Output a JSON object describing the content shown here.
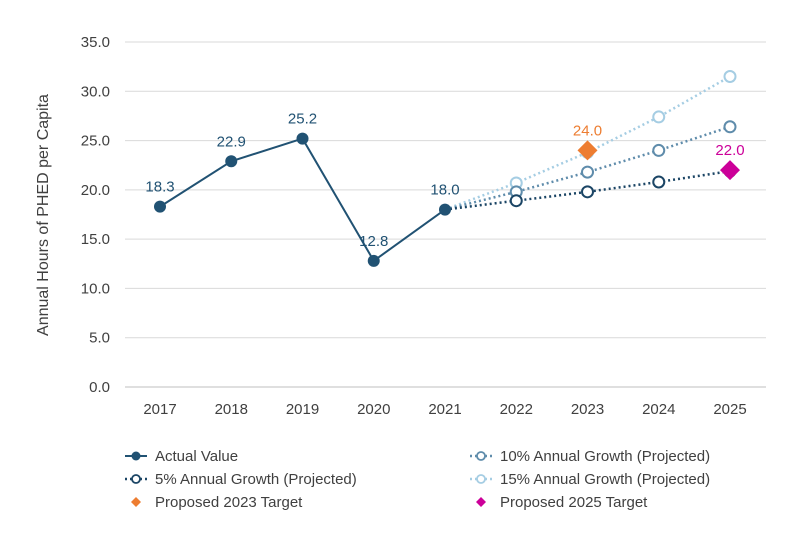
{
  "chart_data": {
    "type": "line",
    "title": "",
    "xlabel": "",
    "ylabel": "Annual Hours of PHED per Capita",
    "ylim": [
      0,
      35
    ],
    "yticks": [
      "0.0",
      "5.0",
      "10.0",
      "15.0",
      "20.0",
      "25.0",
      "30.0",
      "35.0"
    ],
    "categories": [
      "2017",
      "2018",
      "2019",
      "2020",
      "2021",
      "2022",
      "2023",
      "2024",
      "2025"
    ],
    "grid": true,
    "legend_position": "bottom",
    "series": [
      {
        "name": "Actual Value",
        "color": "#215273",
        "style": "solid",
        "marker": "filled-circle",
        "x": [
          "2017",
          "2018",
          "2019",
          "2020",
          "2021"
        ],
        "values": [
          18.3,
          22.9,
          25.2,
          12.8,
          18.0
        ],
        "labels": [
          "18.3",
          "22.9",
          "25.2",
          "12.8",
          "18.0"
        ]
      },
      {
        "name": "5% Annual Growth (Projected)",
        "color": "#1b4565",
        "style": "dotted",
        "marker": "open-circle",
        "x": [
          "2021",
          "2022",
          "2023",
          "2024",
          "2025"
        ],
        "values": [
          18.0,
          18.9,
          19.8,
          20.8,
          21.9
        ]
      },
      {
        "name": "10% Annual Growth (Projected)",
        "color": "#5f8cab",
        "style": "dotted",
        "marker": "open-circle",
        "x": [
          "2021",
          "2022",
          "2023",
          "2024",
          "2025"
        ],
        "values": [
          18.0,
          19.8,
          21.8,
          24.0,
          26.4
        ]
      },
      {
        "name": "15% Annual Growth (Projected)",
        "color": "#a5cde3",
        "style": "dotted",
        "marker": "open-circle",
        "x": [
          "2021",
          "2022",
          "2023",
          "2024",
          "2025"
        ],
        "values": [
          18.0,
          20.7,
          23.8,
          27.4,
          31.5
        ]
      },
      {
        "name": "Proposed 2023 Target",
        "color": "#ed7d31",
        "style": "none",
        "marker": "diamond",
        "x": [
          "2023"
        ],
        "values": [
          24.0
        ],
        "labels": [
          "24.0"
        ]
      },
      {
        "name": "Proposed 2025 Target",
        "color": "#cc0099",
        "style": "none",
        "marker": "diamond",
        "x": [
          "2025"
        ],
        "values": [
          22.0
        ],
        "labels": [
          "22.0"
        ]
      }
    ],
    "legend_order": [
      0,
      2,
      1,
      3,
      4,
      5
    ]
  }
}
